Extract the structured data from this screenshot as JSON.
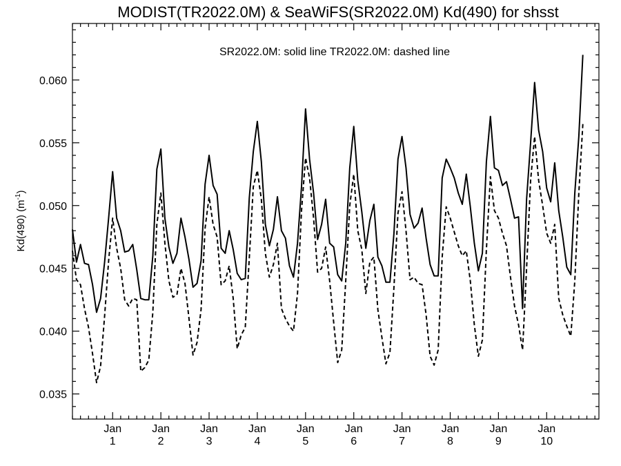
{
  "chart_data": {
    "type": "line",
    "title": "MODIST(TR2022.0M) & SeaWiFS(SR2022.0M)  Kd(490) for shsst",
    "annotation": "SR2022.0M: solid line   TR2022.0M: dashed line",
    "ylabel": "Kd(490) (m",
    "ylabel_sup": "-1",
    "ylabel_close": ")",
    "ylim": [
      0.033,
      0.0645
    ],
    "xlim": [
      0,
      131
    ],
    "yticks": [
      {
        "value": 0.035,
        "label": "0.035"
      },
      {
        "value": 0.04,
        "label": "0.040"
      },
      {
        "value": 0.045,
        "label": "0.045"
      },
      {
        "value": 0.05,
        "label": "0.050"
      },
      {
        "value": 0.055,
        "label": "0.055"
      },
      {
        "value": 0.06,
        "label": "0.060"
      }
    ],
    "xticks": [
      {
        "value": 10,
        "month": "Jan",
        "num": "1"
      },
      {
        "value": 22,
        "month": "Jan",
        "num": "2"
      },
      {
        "value": 34,
        "month": "Jan",
        "num": "3"
      },
      {
        "value": 46,
        "month": "Jan",
        "num": "4"
      },
      {
        "value": 58,
        "month": "Jan",
        "num": "5"
      },
      {
        "value": 70,
        "month": "Jan",
        "num": "6"
      },
      {
        "value": 82,
        "month": "Jan",
        "num": "7"
      },
      {
        "value": 94,
        "month": "Jan",
        "num": "8"
      },
      {
        "value": 106,
        "month": "Jan",
        "num": "9"
      },
      {
        "value": 118,
        "month": "Jan",
        "num": "10"
      }
    ],
    "series": [
      {
        "name": "SR2022.0M",
        "style": "solid",
        "points": [
          [
            0,
            0.0481
          ],
          [
            1,
            0.0455
          ],
          [
            2,
            0.0469
          ],
          [
            3,
            0.0454
          ],
          [
            4,
            0.0453
          ],
          [
            5,
            0.0437
          ],
          [
            6,
            0.0415
          ],
          [
            7,
            0.0426
          ],
          [
            8,
            0.0455
          ],
          [
            9,
            0.049
          ],
          [
            10,
            0.0527
          ],
          [
            11,
            0.049
          ],
          [
            12,
            0.048
          ],
          [
            13,
            0.0463
          ],
          [
            14,
            0.0464
          ],
          [
            15,
            0.0469
          ],
          [
            16,
            0.0449
          ],
          [
            17,
            0.0426
          ],
          [
            18,
            0.0425
          ],
          [
            19,
            0.0425
          ],
          [
            20,
            0.046
          ],
          [
            21,
            0.0529
          ],
          [
            22,
            0.0545
          ],
          [
            23,
            0.049
          ],
          [
            24,
            0.0467
          ],
          [
            25,
            0.0454
          ],
          [
            26,
            0.0462
          ],
          [
            27,
            0.049
          ],
          [
            28,
            0.0475
          ],
          [
            29,
            0.0457
          ],
          [
            30,
            0.0435
          ],
          [
            31,
            0.0438
          ],
          [
            32,
            0.0456
          ],
          [
            33,
            0.0517
          ],
          [
            34,
            0.054
          ],
          [
            35,
            0.0516
          ],
          [
            36,
            0.0509
          ],
          [
            37,
            0.0466
          ],
          [
            38,
            0.0462
          ],
          [
            39,
            0.048
          ],
          [
            40,
            0.0465
          ],
          [
            41,
            0.0446
          ],
          [
            42,
            0.0441
          ],
          [
            43,
            0.0442
          ],
          [
            44,
            0.0506
          ],
          [
            45,
            0.0543
          ],
          [
            46,
            0.0567
          ],
          [
            47,
            0.0535
          ],
          [
            48,
            0.0485
          ],
          [
            49,
            0.0468
          ],
          [
            50,
            0.0481
          ],
          [
            51,
            0.0507
          ],
          [
            52,
            0.048
          ],
          [
            53,
            0.0474
          ],
          [
            54,
            0.0452
          ],
          [
            55,
            0.0443
          ],
          [
            56,
            0.047
          ],
          [
            57,
            0.0515
          ],
          [
            58,
            0.0577
          ],
          [
            59,
            0.0537
          ],
          [
            60,
            0.051
          ],
          [
            61,
            0.0473
          ],
          [
            62,
            0.0485
          ],
          [
            63,
            0.0505
          ],
          [
            64,
            0.047
          ],
          [
            65,
            0.0467
          ],
          [
            66,
            0.0445
          ],
          [
            67,
            0.044
          ],
          [
            68,
            0.047
          ],
          [
            69,
            0.053
          ],
          [
            70,
            0.0563
          ],
          [
            71,
            0.052
          ],
          [
            72,
            0.0495
          ],
          [
            73,
            0.0466
          ],
          [
            74,
            0.0488
          ],
          [
            75,
            0.0501
          ],
          [
            76,
            0.0459
          ],
          [
            77,
            0.0452
          ],
          [
            78,
            0.0439
          ],
          [
            79,
            0.0439
          ],
          [
            80,
            0.0478
          ],
          [
            81,
            0.0537
          ],
          [
            82,
            0.0555
          ],
          [
            83,
            0.053
          ],
          [
            84,
            0.0493
          ],
          [
            85,
            0.0482
          ],
          [
            86,
            0.0486
          ],
          [
            87,
            0.0498
          ],
          [
            88,
            0.0474
          ],
          [
            89,
            0.0453
          ],
          [
            90,
            0.0444
          ],
          [
            91,
            0.0444
          ],
          [
            92,
            0.0522
          ],
          [
            93,
            0.0537
          ],
          [
            94,
            0.053
          ],
          [
            95,
            0.0522
          ],
          [
            96,
            0.051
          ],
          [
            97,
            0.0501
          ],
          [
            98,
            0.0525
          ],
          [
            99,
            0.0499
          ],
          [
            100,
            0.047
          ],
          [
            101,
            0.0448
          ],
          [
            102,
            0.0462
          ],
          [
            103,
            0.0535
          ],
          [
            104,
            0.0571
          ],
          [
            105,
            0.053
          ],
          [
            106,
            0.0528
          ],
          [
            107,
            0.0516
          ],
          [
            108,
            0.0519
          ],
          [
            109,
            0.0505
          ],
          [
            110,
            0.049
          ],
          [
            111,
            0.0491
          ],
          [
            112,
            0.0418
          ],
          [
            113,
            0.0505
          ],
          [
            114,
            0.055
          ],
          [
            115,
            0.0598
          ],
          [
            116,
            0.056
          ],
          [
            117,
            0.0543
          ],
          [
            118,
            0.0514
          ],
          [
            119,
            0.0503
          ],
          [
            120,
            0.0534
          ],
          [
            121,
            0.0496
          ],
          [
            122,
            0.0475
          ],
          [
            123,
            0.0451
          ],
          [
            124,
            0.0445
          ],
          [
            125,
            0.051
          ],
          [
            126,
            0.0555
          ],
          [
            127,
            0.062
          ]
        ]
      },
      {
        "name": "TR2022.0M",
        "style": "dashed",
        "points": [
          [
            0,
            0.0464
          ],
          [
            1,
            0.0441
          ],
          [
            2,
            0.0437
          ],
          [
            3,
            0.0418
          ],
          [
            4,
            0.0403
          ],
          [
            5,
            0.0382
          ],
          [
            6,
            0.0359
          ],
          [
            7,
            0.0372
          ],
          [
            8,
            0.0412
          ],
          [
            9,
            0.0456
          ],
          [
            10,
            0.049
          ],
          [
            11,
            0.0466
          ],
          [
            12,
            0.045
          ],
          [
            13,
            0.0425
          ],
          [
            14,
            0.042
          ],
          [
            15,
            0.0426
          ],
          [
            16,
            0.0425
          ],
          [
            17,
            0.0368
          ],
          [
            18,
            0.0371
          ],
          [
            19,
            0.0377
          ],
          [
            20,
            0.0415
          ],
          [
            21,
            0.0485
          ],
          [
            22,
            0.051
          ],
          [
            23,
            0.047
          ],
          [
            24,
            0.044
          ],
          [
            25,
            0.0427
          ],
          [
            26,
            0.0429
          ],
          [
            27,
            0.045
          ],
          [
            28,
            0.0438
          ],
          [
            29,
            0.041
          ],
          [
            30,
            0.0381
          ],
          [
            31,
            0.0391
          ],
          [
            32,
            0.0417
          ],
          [
            33,
            0.0482
          ],
          [
            34,
            0.0507
          ],
          [
            35,
            0.0485
          ],
          [
            36,
            0.0475
          ],
          [
            37,
            0.0437
          ],
          [
            38,
            0.044
          ],
          [
            39,
            0.0452
          ],
          [
            40,
            0.0426
          ],
          [
            41,
            0.0386
          ],
          [
            42,
            0.0397
          ],
          [
            43,
            0.0403
          ],
          [
            44,
            0.0458
          ],
          [
            45,
            0.0515
          ],
          [
            46,
            0.0528
          ],
          [
            47,
            0.0505
          ],
          [
            48,
            0.0462
          ],
          [
            49,
            0.0443
          ],
          [
            50,
            0.0453
          ],
          [
            51,
            0.047
          ],
          [
            52,
            0.0418
          ],
          [
            53,
            0.041
          ],
          [
            54,
            0.0404
          ],
          [
            55,
            0.04
          ],
          [
            56,
            0.043
          ],
          [
            57,
            0.0496
          ],
          [
            58,
            0.0538
          ],
          [
            59,
            0.0522
          ],
          [
            60,
            0.049
          ],
          [
            61,
            0.0447
          ],
          [
            62,
            0.045
          ],
          [
            63,
            0.0467
          ],
          [
            64,
            0.044
          ],
          [
            65,
            0.0407
          ],
          [
            66,
            0.0375
          ],
          [
            67,
            0.0385
          ],
          [
            68,
            0.044
          ],
          [
            69,
            0.05
          ],
          [
            70,
            0.0525
          ],
          [
            71,
            0.048
          ],
          [
            72,
            0.0465
          ],
          [
            73,
            0.043
          ],
          [
            74,
            0.0455
          ],
          [
            75,
            0.0459
          ],
          [
            76,
            0.0417
          ],
          [
            77,
            0.0395
          ],
          [
            78,
            0.0374
          ],
          [
            79,
            0.0383
          ],
          [
            80,
            0.0435
          ],
          [
            81,
            0.0494
          ],
          [
            82,
            0.0511
          ],
          [
            83,
            0.048
          ],
          [
            84,
            0.0441
          ],
          [
            85,
            0.0443
          ],
          [
            86,
            0.0438
          ],
          [
            87,
            0.0437
          ],
          [
            88,
            0.0413
          ],
          [
            89,
            0.038
          ],
          [
            90,
            0.0373
          ],
          [
            91,
            0.0385
          ],
          [
            92,
            0.0459
          ],
          [
            93,
            0.0499
          ],
          [
            94,
            0.049
          ],
          [
            95,
            0.0479
          ],
          [
            96,
            0.0468
          ],
          [
            97,
            0.046
          ],
          [
            98,
            0.0464
          ],
          [
            99,
            0.044
          ],
          [
            100,
            0.0405
          ],
          [
            101,
            0.038
          ],
          [
            102,
            0.0393
          ],
          [
            103,
            0.0465
          ],
          [
            104,
            0.0523
          ],
          [
            105,
            0.0496
          ],
          [
            106,
            0.049
          ],
          [
            107,
            0.0478
          ],
          [
            108,
            0.0468
          ],
          [
            109,
            0.0443
          ],
          [
            110,
            0.042
          ],
          [
            111,
            0.0405
          ],
          [
            112,
            0.0385
          ],
          [
            113,
            0.045
          ],
          [
            114,
            0.052
          ],
          [
            115,
            0.0555
          ],
          [
            116,
            0.052
          ],
          [
            117,
            0.05
          ],
          [
            118,
            0.0478
          ],
          [
            119,
            0.047
          ],
          [
            120,
            0.0485
          ],
          [
            121,
            0.0426
          ],
          [
            122,
            0.0413
          ],
          [
            123,
            0.0404
          ],
          [
            124,
            0.0396
          ],
          [
            125,
            0.044
          ],
          [
            126,
            0.051
          ],
          [
            127,
            0.0565
          ]
        ]
      }
    ]
  }
}
